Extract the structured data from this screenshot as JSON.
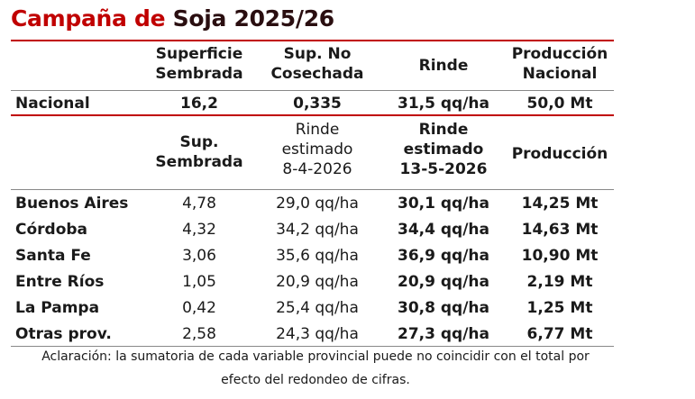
{
  "title": {
    "part1": "Campaña de ",
    "part2": "Soja 2025/26"
  },
  "national_header": {
    "col1": [
      "Superficie",
      "Sembrada"
    ],
    "col2": [
      "Sup. No",
      "Cosechada"
    ],
    "col3": [
      "Rinde"
    ],
    "col4": [
      "Producción",
      "Nacional"
    ]
  },
  "national_row": {
    "label": "Nacional",
    "values": [
      "16,2",
      "0,335",
      "31,5 qq/ha",
      "50,0 Mt"
    ]
  },
  "provincial_header": {
    "col1": [
      "Sup.",
      "Sembrada"
    ],
    "col2": [
      "Rinde",
      "estimado",
      "8-4-2026"
    ],
    "col3": [
      "Rinde",
      "estimado",
      "13-5-2026"
    ],
    "col4": [
      "Producción"
    ]
  },
  "provinces": [
    {
      "name": "Buenos Aires",
      "values": [
        "4,78",
        "29,0 qq/ha",
        "30,1 qq/ha",
        "14,25 Mt"
      ]
    },
    {
      "name": "Córdoba",
      "values": [
        "4,32",
        "34,2 qq/ha",
        "34,4 qq/ha",
        "14,63 Mt"
      ]
    },
    {
      "name": "Santa Fe",
      "values": [
        "3,06",
        "35,6 qq/ha",
        "36,9 qq/ha",
        "10,90 Mt"
      ]
    },
    {
      "name": "Entre Ríos",
      "values": [
        "1,05",
        "20,9 qq/ha",
        "20,9 qq/ha",
        "2,19 Mt"
      ]
    },
    {
      "name": "La Pampa",
      "values": [
        "0,42",
        "25,4 qq/ha",
        "30,8 qq/ha",
        "1,25 Mt"
      ]
    },
    {
      "name": "Otras prov.",
      "values": [
        "2,58",
        "24,3 qq/ha",
        "27,3 qq/ha",
        "6,77 Mt"
      ]
    }
  ],
  "note": {
    "line1": "Aclaración: la sumatoria de cada variable provincial puede no coincidir con el total por",
    "line2": "efecto del redondeo de cifras."
  }
}
